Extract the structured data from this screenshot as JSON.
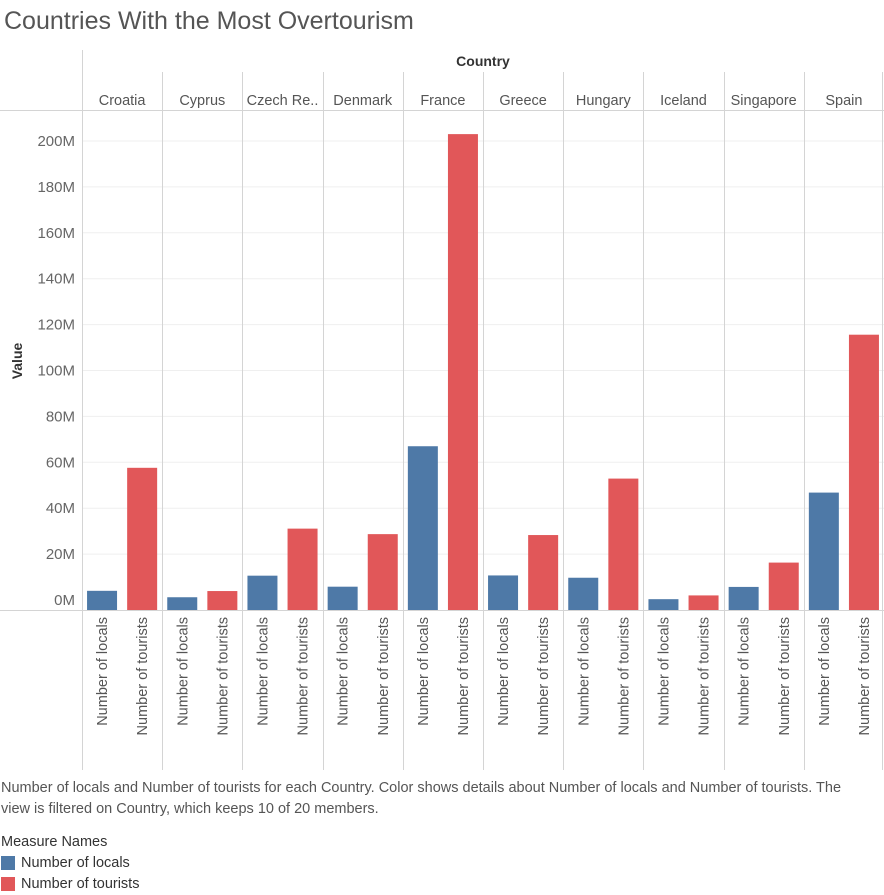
{
  "page": {
    "title": "Countries With the Most Overtourism",
    "caption": "Number of locals and Number of tourists for each Country.  Color shows details about Number of locals and Number of tourists. The view is filtered on Country, which keeps 10 of 20 members."
  },
  "legend": {
    "title": "Measure Names",
    "items": [
      {
        "label": "Number of locals",
        "color": "#4e79a7"
      },
      {
        "label": "Number of tourists",
        "color": "#e15759"
      }
    ]
  },
  "chart_data": {
    "type": "bar",
    "title": "Countries With the Most Overtourism",
    "column_header": "Country",
    "ylabel": "Value",
    "ylim": [
      -3000000,
      212000000
    ],
    "yticks": [
      0,
      20000000,
      40000000,
      60000000,
      80000000,
      100000000,
      120000000,
      140000000,
      160000000,
      180000000,
      200000000
    ],
    "ytick_labels": [
      "0M",
      "20M",
      "40M",
      "60M",
      "80M",
      "100M",
      "120M",
      "140M",
      "160M",
      "180M",
      "200M"
    ],
    "grid": true,
    "countries": [
      "Croatia",
      "Cyprus",
      "Czech Re..",
      "Denmark",
      "France",
      "Greece",
      "Hungary",
      "Iceland",
      "Singapore",
      "Spain"
    ],
    "measures": [
      "Number of locals",
      "Number of tourists"
    ],
    "series": [
      {
        "name": "Number of locals",
        "color": "#4e79a7",
        "values": [
          4000000,
          1200000,
          10600000,
          5800000,
          67000000,
          10700000,
          9700000,
          360000,
          5700000,
          46800000
        ]
      },
      {
        "name": "Number of tourists",
        "color": "#e15759",
        "values": [
          57600000,
          3900000,
          31100000,
          28700000,
          203000000,
          28300000,
          52900000,
          2000000,
          16300000,
          115600000
        ]
      }
    ]
  }
}
